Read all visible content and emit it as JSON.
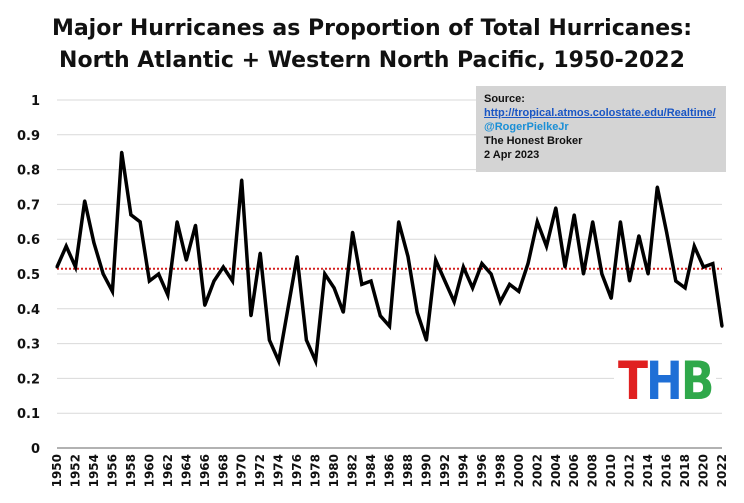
{
  "title": {
    "line1": "Major Hurricanes as Proportion of Total Hurricanes:",
    "line2": "North Atlantic + Western North Pacific, 1950-2022"
  },
  "source": {
    "heading": "Source:",
    "url": "http://tropical.atmos.colostate.edu/Realtime/",
    "handle": "@RogerPielkeJr",
    "publisher": "The Honest Broker",
    "date": "2 Apr 2023"
  },
  "logo": {
    "text": "THB",
    "letters": [
      {
        "char": "T",
        "color": "#e02020"
      },
      {
        "char": "H",
        "color": "#1f6fd6"
      },
      {
        "char": "B",
        "color": "#2fa84a"
      }
    ]
  },
  "colors": {
    "line": "#000000",
    "mean_line": "#d62020",
    "grid": "#d9d9d9",
    "source_box": "#d4d4d4"
  },
  "chart_data": {
    "type": "line",
    "title": "Major Hurricanes as Proportion of Total Hurricanes: North Atlantic + Western North Pacific, 1950-2022",
    "xlabel": "",
    "ylabel": "",
    "xlim": [
      1950,
      2022
    ],
    "ylim": [
      0,
      1
    ],
    "y_ticks": [
      "0",
      "0.1",
      "0.2",
      "0.3",
      "0.4",
      "0.5",
      "0.6",
      "0.7",
      "0.8",
      "0.9",
      "1"
    ],
    "x_ticks": [
      1950,
      1952,
      1954,
      1956,
      1958,
      1960,
      1962,
      1964,
      1966,
      1968,
      1970,
      1972,
      1974,
      1976,
      1978,
      1980,
      1982,
      1984,
      1986,
      1988,
      1990,
      1992,
      1994,
      1996,
      1998,
      2000,
      2002,
      2004,
      2006,
      2008,
      2010,
      2012,
      2014,
      2016,
      2018,
      2020,
      2022
    ],
    "grid": "horizontal",
    "mean_line": 0.515,
    "x": [
      1950,
      1951,
      1952,
      1953,
      1954,
      1955,
      1956,
      1957,
      1958,
      1959,
      1960,
      1961,
      1962,
      1963,
      1964,
      1965,
      1966,
      1967,
      1968,
      1969,
      1970,
      1971,
      1972,
      1973,
      1974,
      1975,
      1976,
      1977,
      1978,
      1979,
      1980,
      1981,
      1982,
      1983,
      1984,
      1985,
      1986,
      1987,
      1988,
      1989,
      1990,
      1991,
      1992,
      1993,
      1994,
      1995,
      1996,
      1997,
      1998,
      1999,
      2000,
      2001,
      2002,
      2003,
      2004,
      2005,
      2006,
      2007,
      2008,
      2009,
      2010,
      2011,
      2012,
      2013,
      2014,
      2015,
      2016,
      2017,
      2018,
      2019,
      2020,
      2021,
      2022
    ],
    "values": [
      0.52,
      0.58,
      0.52,
      0.71,
      0.59,
      0.5,
      0.45,
      0.85,
      0.67,
      0.65,
      0.48,
      0.5,
      0.44,
      0.65,
      0.54,
      0.64,
      0.41,
      0.48,
      0.52,
      0.48,
      0.77,
      0.38,
      0.56,
      0.31,
      0.25,
      0.4,
      0.55,
      0.31,
      0.25,
      0.5,
      0.46,
      0.39,
      0.62,
      0.47,
      0.48,
      0.38,
      0.35,
      0.65,
      0.55,
      0.39,
      0.31,
      0.54,
      0.48,
      0.42,
      0.52,
      0.46,
      0.53,
      0.5,
      0.42,
      0.47,
      0.45,
      0.53,
      0.65,
      0.58,
      0.69,
      0.52,
      0.67,
      0.5,
      0.65,
      0.5,
      0.43,
      0.65,
      0.48,
      0.61,
      0.5,
      0.75,
      0.62,
      0.48,
      0.46,
      0.58,
      0.52,
      0.53,
      0.35
    ]
  }
}
